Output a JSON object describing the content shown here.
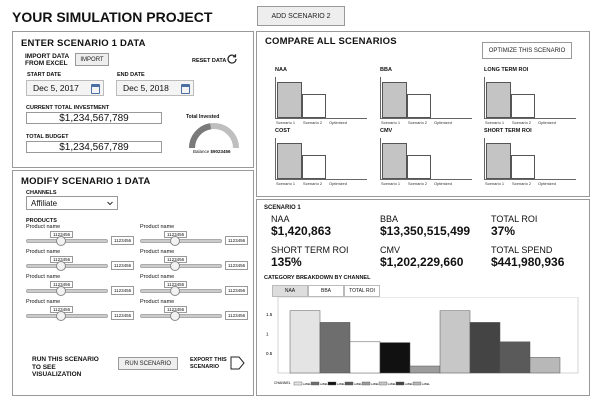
{
  "header": {
    "title": "YOUR SIMULATION PROJECT",
    "add_button": "ADD SCENARIO 2"
  },
  "enter": {
    "title": "ENTER SCENARIO 1 DATA",
    "import_label": "IMPORT DATA FROM EXCEL",
    "import_button": "IMPORT",
    "reset_label": "RESET DATA",
    "start_label": "START DATE",
    "start_value": "Dec 5, 2017",
    "end_label": "END DATE",
    "end_value": "Dec 5, 2018",
    "investment_label": "CURRENT TOTAL INVESTMENT",
    "investment_value": "$1,234,567,789",
    "budget_label": "TOTAL BUDGET",
    "budget_value": "$1,234,567,789",
    "gauge_title": "Total Invested",
    "gauge_fraction": 0.45,
    "balance_label": "Balance",
    "balance_value": "$9023456"
  },
  "modify": {
    "title": "MODIFY SCENARIO 1 DATA",
    "channels_label": "CHANNELS",
    "channel_value": "Affiliate",
    "products_label": "PRODUCTS",
    "sliders": [
      {
        "name": "Product name",
        "bubble": "1123456",
        "value": "1123456"
      },
      {
        "name": "Product name",
        "bubble": "1123456",
        "value": "1123456"
      },
      {
        "name": "Product name",
        "bubble": "1123456",
        "value": "1123456"
      },
      {
        "name": "Product name",
        "bubble": "1123456",
        "value": "1123456"
      },
      {
        "name": "Product name",
        "bubble": "1123456",
        "value": "1123456"
      },
      {
        "name": "Product name",
        "bubble": "1123456",
        "value": "1123456"
      },
      {
        "name": "Product name",
        "bubble": "1123456",
        "value": "1123456"
      },
      {
        "name": "Product name",
        "bubble": "1123456",
        "value": "1123456"
      }
    ],
    "run_label": "RUN THIS SCENARIO TO SEE VISUALIZATION",
    "run_button": "RUN SCENARIO",
    "export_label": "EXPORT THIS SCENARIO"
  },
  "compare": {
    "title": "COMPARE ALL SCENARIOS",
    "optimize_button": "OPTIMIZE THIS SCENARIO",
    "charts": [
      {
        "title": "NAA",
        "x": [
          "Scenario 1",
          "Scenario 2",
          "Optimized"
        ]
      },
      {
        "title": "BBA",
        "x": [
          "Scenario 1",
          "Scenario 2",
          "Optimized"
        ]
      },
      {
        "title": "LONG TERM ROI",
        "x": [
          "Scenario 1",
          "Scenario 2",
          "Optimized"
        ]
      },
      {
        "title": "COST",
        "x": [
          "Scenario 1",
          "Scenario 2",
          "Optimized"
        ]
      },
      {
        "title": "CMV",
        "x": [
          "Scenario 1",
          "Scenario 2",
          "Optimized"
        ]
      },
      {
        "title": "SHORT TERM ROI",
        "x": [
          "Scenario 1",
          "Scenario 2",
          "Optimized"
        ]
      }
    ]
  },
  "scenario": {
    "title": "SCENARIO 1",
    "kpis": [
      {
        "label": "NAA",
        "value": "$1,420,863"
      },
      {
        "label": "BBA",
        "value": "$13,350,515,499"
      },
      {
        "label": "TOTAL ROI",
        "value": "37%"
      },
      {
        "label": "SHORT TERM ROI",
        "value": "135%"
      },
      {
        "label": "CMV",
        "value": "$1,202,229,660"
      },
      {
        "label": "TOTAL SPEND",
        "value": "$441,980,936"
      }
    ],
    "breakdown_title": "CATEGORY BREAKDOWN BY CHANNEL",
    "tabs": [
      "NAA",
      "BBA",
      "TOTAL ROI"
    ],
    "legend_channel": "CHANNEL",
    "legend_label": "LABEL"
  },
  "chart_data": {
    "type": "bar",
    "title": "",
    "yticks": [
      "1.5",
      "1",
      "0.5"
    ],
    "ylim": [
      0,
      1.9
    ],
    "values": [
      1.6,
      1.3,
      0.8,
      0.78,
      0.18,
      1.6,
      1.3,
      0.8,
      0.4
    ],
    "colors": [
      "#e4e4e4",
      "#6e6e6e",
      "#ffffff",
      "#111111",
      "#9c9c9c",
      "#c7c7c7",
      "#444444",
      "#5a5a5a",
      "#b8b8b8"
    ]
  }
}
